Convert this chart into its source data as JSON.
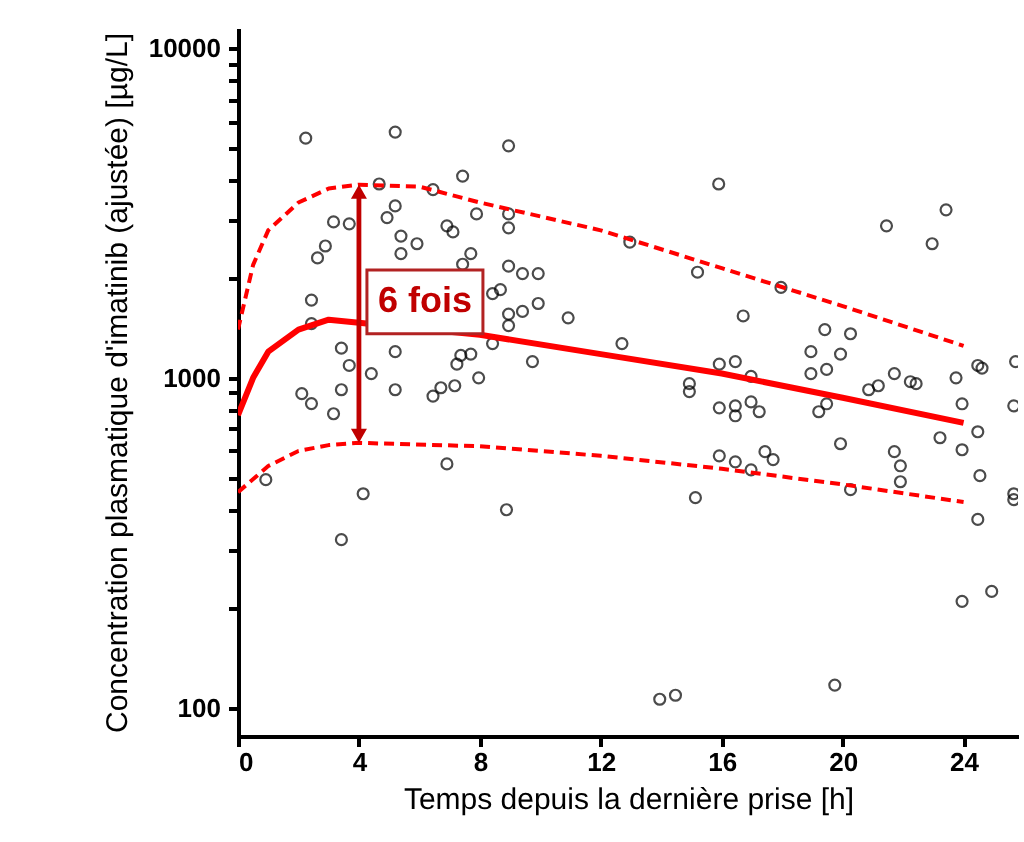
{
  "chart_data": {
    "type": "scatter",
    "xlabel": "Temps depuis la dernière prise [h]",
    "ylabel": "Concentration plasmatique d'imatinib (ajustée) [µg/L]",
    "log": "y",
    "grid": false,
    "xlim": [
      0,
      25.8
    ],
    "xticks": [
      0,
      4,
      8,
      12,
      16,
      20,
      24
    ],
    "ylim": [
      82,
      11500
    ],
    "yticks": [
      100,
      {
        "value": 200,
        "label": null
      },
      {
        "value": 300,
        "label": null
      },
      {
        "value": 400,
        "label": null
      },
      {
        "value": 500,
        "label": null
      },
      {
        "value": 600,
        "label": null
      },
      {
        "value": 700,
        "label": null
      },
      {
        "value": 800,
        "label": null
      },
      {
        "value": 900,
        "label": null
      },
      1000,
      {
        "value": 2000,
        "label": null
      },
      {
        "value": 3000,
        "label": null
      },
      {
        "value": 4000,
        "label": null
      },
      {
        "value": 5000,
        "label": null
      },
      {
        "value": 6000,
        "label": null
      },
      {
        "value": 7000,
        "label": null
      },
      {
        "value": 8000,
        "label": null
      },
      {
        "value": 9000,
        "label": null
      },
      10000
    ],
    "annotations": [
      "6 fois"
    ],
    "series": [
      {
        "type": "scatter",
        "color": "#000000",
        "marker": "circle",
        "x": [
          2.24,
          5.2,
          4.67,
          6.45,
          7.43,
          3.16,
          3.68,
          4.93,
          5.2,
          5.39,
          5.92,
          2.89,
          2.63,
          5.39,
          6.91,
          7.11,
          7.89,
          7.43,
          7.7,
          2.43,
          2.43,
          3.42,
          3.68,
          4.41,
          5.2,
          3.42,
          2.11,
          2.43,
          5.2,
          6.45,
          6.71,
          7.17,
          7.24,
          7.37,
          7.7,
          3.16,
          6.91,
          0.92,
          4.14,
          8.42,
          8.42,
          8.95,
          15.9,
          8.95,
          8.95,
          12.96,
          15.2,
          8.95,
          9.41,
          9.93,
          8.68,
          9.41,
          9.93,
          8.95,
          10.92,
          8.95,
          16.71,
          12.7,
          9.74,
          15.92,
          16.45,
          16.97,
          14.93,
          14.93,
          15.92,
          16.45,
          16.45,
          16.97,
          17.24,
          15.92,
          16.45,
          16.97,
          17.43,
          17.7,
          15.13,
          7.96,
          23.42,
          21.45,
          22.96,
          17.96,
          19.41,
          20.26,
          18.95,
          19.93,
          18.95,
          19.47,
          21.71,
          20.86,
          21.18,
          22.24,
          22.43,
          23.75,
          24.47,
          24.61,
          25.72,
          23.95,
          19.47,
          19.21,
          25.66,
          23.22,
          24.47,
          23.95,
          19.93,
          21.71,
          21.91,
          24.54,
          21.91,
          20.26,
          25.66,
          25.66,
          24.47,
          23.95,
          24.93,
          19.74,
          3.42,
          8.88,
          13.95,
          14.47
        ],
        "values": [
          5330,
          5560,
          3870,
          3720,
          4090,
          2970,
          2930,
          3060,
          3320,
          2690,
          2550,
          2510,
          2310,
          2380,
          2890,
          2770,
          3140,
          2210,
          2380,
          1720,
          1460,
          1230,
          1090,
          1030,
          1200,
          920,
          895,
          835,
          920,
          880,
          933,
          946,
          1100,
          1170,
          1180,
          778,
          548,
          491,
          445,
          1800,
          1270,
          5050,
          3870,
          3140,
          2850,
          2580,
          2090,
          2180,
          2070,
          2070,
          1850,
          1590,
          1680,
          1560,
          1520,
          1440,
          1540,
          1270,
          1120,
          1100,
          1120,
          1010,
          960,
          908,
          811,
          822,
          767,
          845,
          789,
          580,
          556,
          526,
          597,
          565,
          433,
          1000,
          3230,
          2890,
          2550,
          1880,
          1400,
          1360,
          1200,
          1180,
          1030,
          1060,
          1030,
          920,
          946,
          973,
          960,
          1000,
          1090,
          1070,
          1120,
          834,
          834,
          789,
          822,
          658,
          686,
          605,
          631,
          597,
          541,
          505,
          484,
          458,
          445,
          427,
          372,
          210,
          225,
          117,
          323,
          398,
          106,
          109
        ]
      },
      {
        "type": "line",
        "color": "#ff0000",
        "line_style": "solid",
        "x": [
          0,
          0.5,
          1,
          2,
          3,
          8,
          12,
          16,
          20,
          24
        ],
        "values": [
          770,
          1000,
          1200,
          1400,
          1500,
          1350,
          1180,
          1030,
          870,
          730
        ]
      },
      {
        "type": "line",
        "color": "#ff0000",
        "line_style": "dashed",
        "x": [
          0,
          0.5,
          1,
          2,
          3,
          4,
          6,
          8,
          12,
          16,
          20,
          24
        ],
        "values": [
          1400,
          2200,
          2800,
          3400,
          3750,
          3850,
          3800,
          3400,
          2800,
          2150,
          1650,
          1250
        ]
      },
      {
        "type": "line",
        "color": "#ff0000",
        "line_style": "dashed",
        "x": [
          0,
          1,
          2,
          3,
          4,
          8,
          12,
          16,
          20,
          24
        ],
        "values": [
          450,
          540,
          600,
          625,
          635,
          620,
          580,
          530,
          475,
          420
        ]
      }
    ]
  }
}
